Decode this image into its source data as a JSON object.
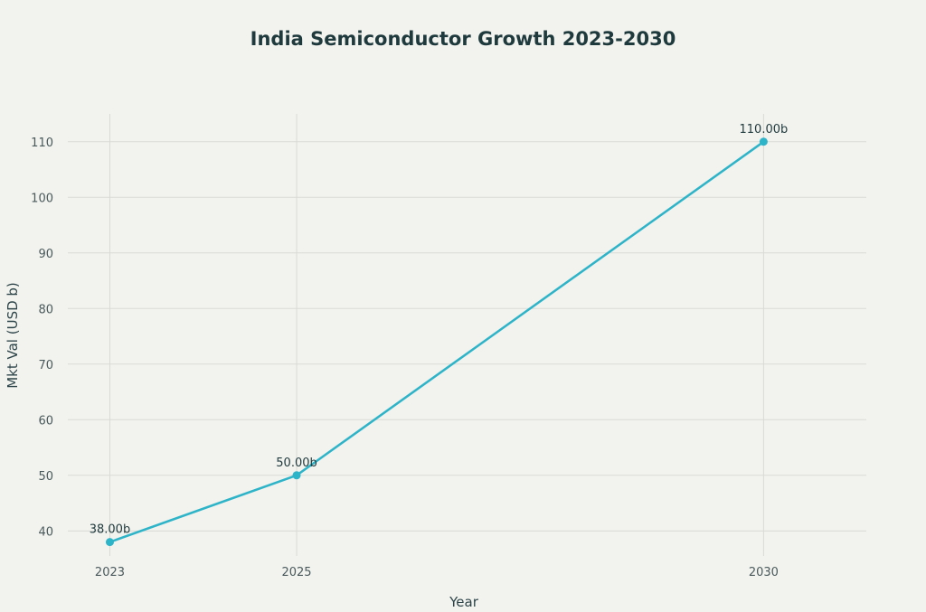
{
  "chart_data": {
    "type": "line",
    "title": "India Semiconductor Growth 2023-2030",
    "xlabel": "Year",
    "ylabel": "Mkt Val (USD b)",
    "x": [
      2023,
      2025,
      2030
    ],
    "x_tick_labels": [
      "2023",
      "2025",
      "2030"
    ],
    "y_ticks": [
      40,
      50,
      60,
      70,
      80,
      90,
      100,
      110
    ],
    "xlim": [
      2022.55,
      2031.1
    ],
    "ylim": [
      35.5,
      115
    ],
    "grid": true,
    "legend": "none",
    "series": [
      {
        "values": [
          38,
          50,
          110
        ],
        "data_labels": [
          "38.00b",
          "50.00b",
          "110.00b"
        ],
        "color": "#2eb4c8"
      }
    ]
  }
}
